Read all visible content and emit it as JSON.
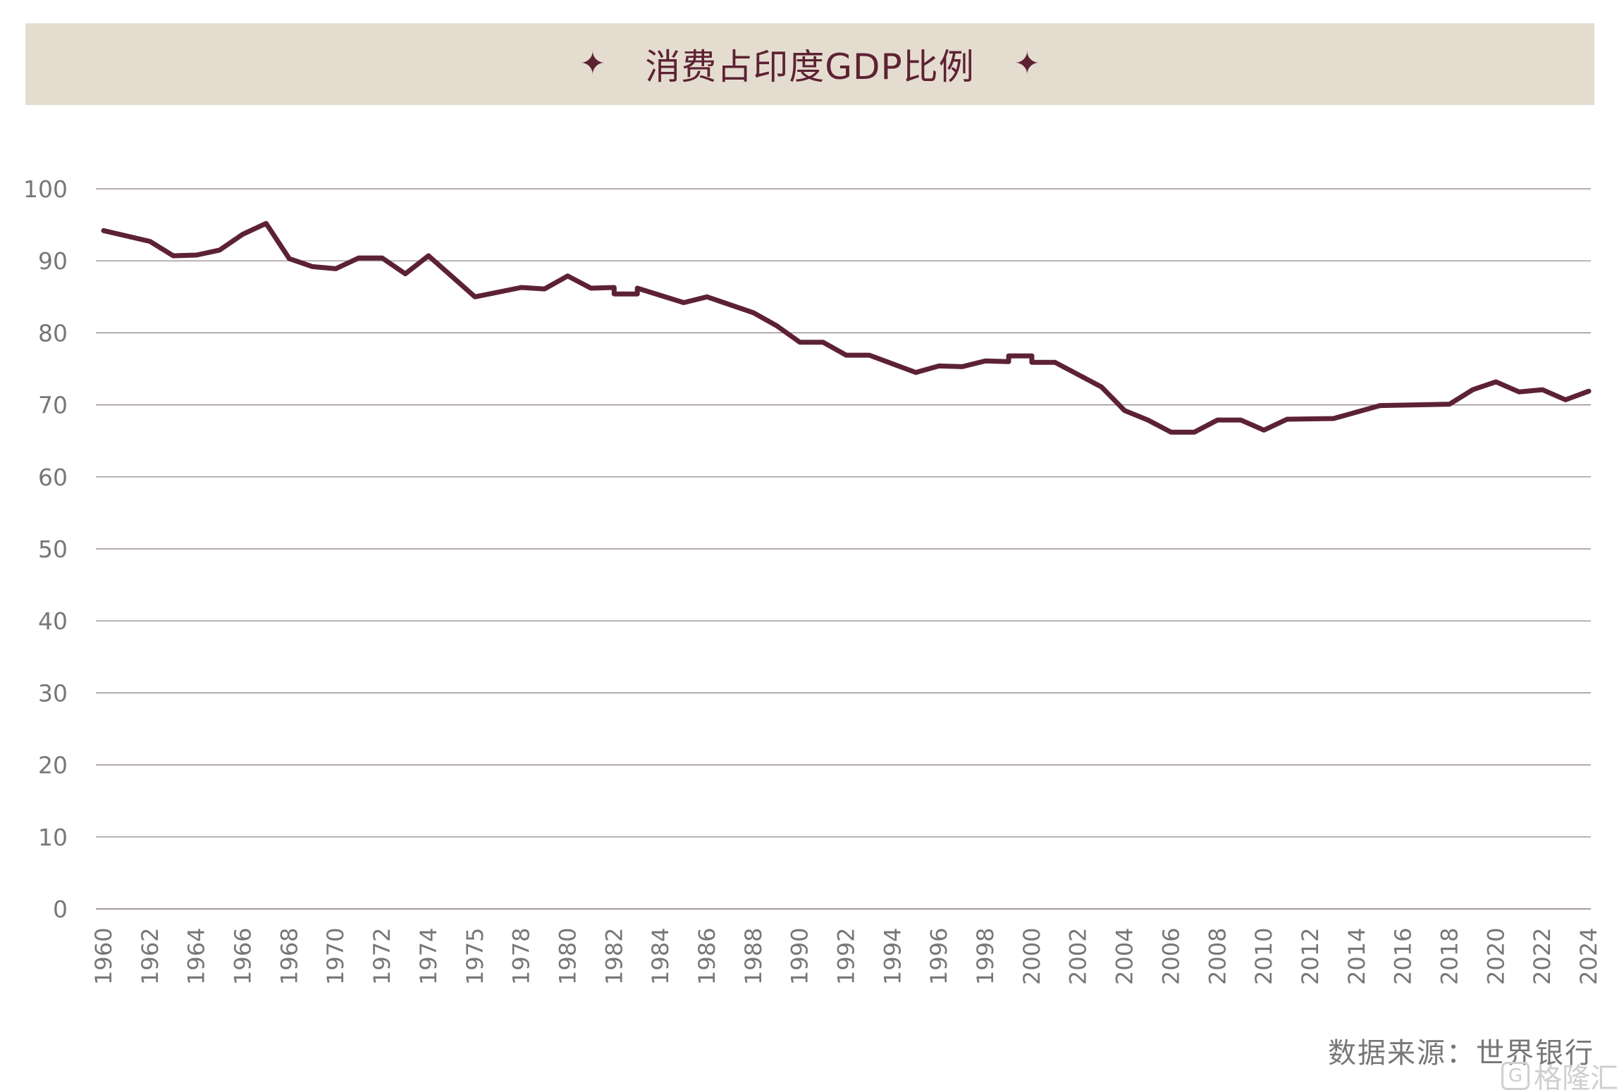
{
  "chart_data": {
    "type": "line",
    "title": "消费占印度GDP比例",
    "title_ornament": "✦",
    "ylim": [
      0,
      100
    ],
    "yticks": [
      0,
      10,
      20,
      30,
      40,
      50,
      60,
      70,
      80,
      90,
      100
    ],
    "xticks": [
      "1960",
      "1962",
      "1964",
      "1966",
      "1968",
      "1970",
      "1972",
      "1974",
      "1975",
      "1978",
      "1980",
      "1982",
      "1984",
      "1986",
      "1988",
      "1990",
      "1992",
      "1994",
      "1996",
      "1998",
      "2000",
      "2002",
      "2004",
      "2006",
      "2008",
      "2010",
      "2012",
      "2014",
      "2016",
      "2018",
      "2020",
      "2022",
      "2024"
    ],
    "grid": true,
    "series": [
      {
        "values": [
          [
            1960,
            94.2
          ],
          [
            1962,
            92.7
          ],
          [
            1963,
            90.7
          ],
          [
            1964,
            90.8
          ],
          [
            1965,
            91.5
          ],
          [
            1966,
            93.7
          ],
          [
            1967,
            95.2
          ],
          [
            1968,
            90.3
          ],
          [
            1969,
            89.2
          ],
          [
            1970,
            88.9
          ],
          [
            1971,
            90.4
          ],
          [
            1972,
            90.4
          ],
          [
            1973,
            88.2
          ],
          [
            1974,
            90.7
          ],
          [
            1975,
            85.0
          ],
          [
            1978,
            86.3
          ],
          [
            1979,
            86.1
          ],
          [
            1980,
            87.9
          ],
          [
            1981,
            86.2
          ],
          [
            1982,
            86.3
          ],
          [
            1982,
            85.4
          ],
          [
            1983,
            85.4
          ],
          [
            1983,
            86.2
          ],
          [
            1985,
            84.2
          ],
          [
            1986,
            85.0
          ],
          [
            1988,
            82.8
          ],
          [
            1989,
            81.0
          ],
          [
            1990,
            78.7
          ],
          [
            1991,
            78.7
          ],
          [
            1992,
            76.9
          ],
          [
            1993,
            76.9
          ],
          [
            1995,
            74.5
          ],
          [
            1996,
            75.4
          ],
          [
            1997,
            75.3
          ],
          [
            1998,
            76.1
          ],
          [
            1999,
            76.0
          ],
          [
            1999,
            76.8
          ],
          [
            2000,
            76.8
          ],
          [
            2000,
            75.9
          ],
          [
            2001,
            75.9
          ],
          [
            2003,
            72.5
          ],
          [
            2004,
            69.2
          ],
          [
            2005,
            67.9
          ],
          [
            2006,
            66.2
          ],
          [
            2007,
            66.2
          ],
          [
            2008,
            67.9
          ],
          [
            2009,
            67.9
          ],
          [
            2010,
            66.5
          ],
          [
            2011,
            68.0
          ],
          [
            2013,
            68.1
          ],
          [
            2015,
            69.9
          ],
          [
            2018,
            70.1
          ],
          [
            2019,
            72.1
          ],
          [
            2020,
            73.2
          ],
          [
            2021,
            71.8
          ],
          [
            2022,
            72.1
          ],
          [
            2023,
            70.7
          ],
          [
            2024,
            71.9
          ]
        ]
      }
    ],
    "source": "数据来源：世界银行"
  },
  "watermark": {
    "icon": "G",
    "text": "格隆汇"
  },
  "colors": {
    "line": "#5c2233",
    "banner_bg": "#e5dcd0",
    "title": "#5c2233",
    "grid": "#8a7a7f",
    "tick_text": "#777777"
  }
}
